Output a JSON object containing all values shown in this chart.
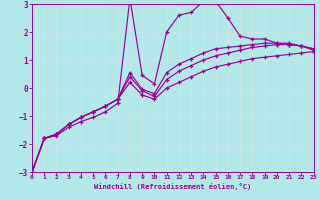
{
  "xlabel": "Windchill (Refroidissement éolien,°C)",
  "bg_color": "#b2e8e8",
  "grid_color": "#d0d0d0",
  "line_color": "#990099",
  "xmin": 0,
  "xmax": 23,
  "ymin": -3,
  "ymax": 3,
  "yticks": [
    -3,
    -2,
    -1,
    0,
    1,
    2,
    3
  ],
  "xticks": [
    0,
    1,
    2,
    3,
    4,
    5,
    6,
    7,
    8,
    9,
    10,
    11,
    12,
    13,
    14,
    15,
    16,
    17,
    18,
    19,
    20,
    21,
    22,
    23
  ],
  "line1_x": [
    0,
    1,
    2,
    3,
    4,
    5,
    6,
    7,
    8,
    9,
    10,
    11,
    12,
    13,
    14,
    15,
    16,
    17,
    18,
    19,
    20,
    21,
    22,
    23
  ],
  "line1_y": [
    -3.0,
    -1.8,
    -1.7,
    -1.4,
    -1.2,
    -1.05,
    -0.85,
    -0.55,
    3.2,
    0.45,
    0.15,
    2.0,
    2.6,
    2.7,
    3.1,
    3.1,
    2.5,
    1.85,
    1.75,
    1.75,
    1.6,
    1.55,
    1.5,
    1.35
  ],
  "line2_x": [
    0,
    1,
    2,
    3,
    4,
    5,
    6,
    7,
    8,
    9,
    10,
    11,
    12,
    13,
    14,
    15,
    16,
    17,
    18,
    19,
    20,
    21,
    22,
    23
  ],
  "line2_y": [
    -3.0,
    -1.8,
    -1.65,
    -1.3,
    -1.05,
    -0.85,
    -0.65,
    -0.4,
    0.55,
    -0.05,
    -0.2,
    0.55,
    0.85,
    1.05,
    1.25,
    1.4,
    1.45,
    1.5,
    1.55,
    1.6,
    1.6,
    1.6,
    1.5,
    1.4
  ],
  "line3_x": [
    0,
    1,
    2,
    3,
    4,
    5,
    6,
    7,
    8,
    9,
    10,
    11,
    12,
    13,
    14,
    15,
    16,
    17,
    18,
    19,
    20,
    21,
    22,
    23
  ],
  "line3_y": [
    -3.0,
    -1.8,
    -1.65,
    -1.3,
    -1.05,
    -0.85,
    -0.65,
    -0.4,
    0.4,
    -0.1,
    -0.3,
    0.3,
    0.6,
    0.8,
    1.0,
    1.15,
    1.25,
    1.35,
    1.45,
    1.5,
    1.55,
    1.55,
    1.5,
    1.4
  ],
  "line4_x": [
    0,
    1,
    2,
    3,
    4,
    5,
    6,
    7,
    8,
    9,
    10,
    11,
    12,
    13,
    14,
    15,
    16,
    17,
    18,
    19,
    20,
    21,
    22,
    23
  ],
  "line4_y": [
    -3.0,
    -1.8,
    -1.65,
    -1.3,
    -1.05,
    -0.85,
    -0.65,
    -0.4,
    0.2,
    -0.25,
    -0.4,
    0.0,
    0.2,
    0.4,
    0.6,
    0.75,
    0.85,
    0.95,
    1.05,
    1.1,
    1.15,
    1.2,
    1.25,
    1.3
  ]
}
